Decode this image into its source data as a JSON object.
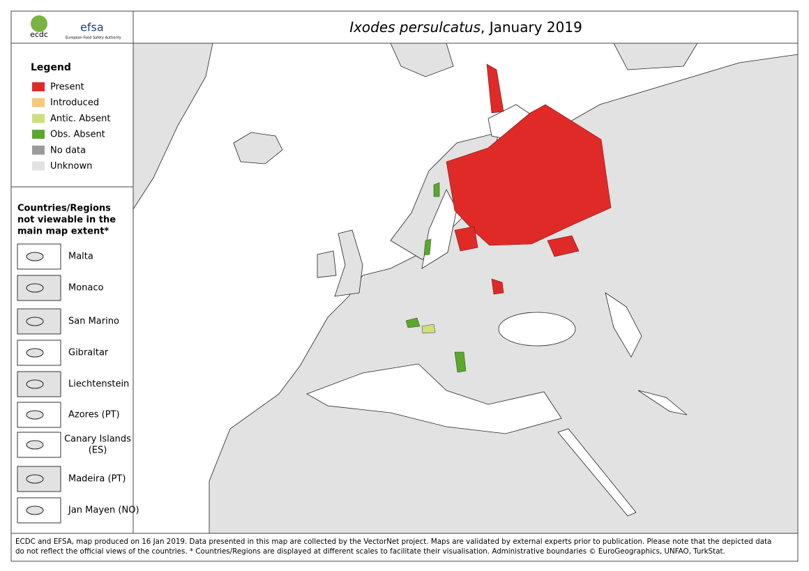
{
  "header": {
    "ecdc": "ecdc",
    "efsa": "efsa",
    "efsa_sub": "European Food Safety Authority",
    "title_species": "Ixodes persulcatus",
    "title_rest": ", January 2019"
  },
  "legend": {
    "title": "Legend",
    "items": [
      {
        "label": "Present",
        "color": "#e02a28"
      },
      {
        "label": "Introduced",
        "color": "#f7c97a"
      },
      {
        "label": "Antic. Absent",
        "color": "#cfe07a"
      },
      {
        "label": "Obs. Absent",
        "color": "#5aa92b"
      },
      {
        "label": "No data",
        "color": "#9b9b9b"
      },
      {
        "label": "Unknown",
        "color": "#e2e2e2"
      }
    ]
  },
  "regions": {
    "title": [
      "Countries/Regions",
      "not viewable in the",
      "main map extent*"
    ],
    "items": [
      [
        "Malta"
      ],
      [
        "Monaco"
      ],
      [
        "San Marino"
      ],
      [
        "Gibraltar"
      ],
      [
        "Liechtenstein"
      ],
      [
        "Azores (PT)"
      ],
      [
        "Canary Islands",
        "(ES)"
      ],
      [
        "Madeira (PT)"
      ],
      [
        "Jan Mayen (NO)"
      ]
    ]
  },
  "footer": [
    "ECDC and EFSA, map produced on 16 Jan 2019. Data presented in this map are collected by the VectorNet project. Maps are validated by external experts prior to publication. Please note that the depicted data",
    "do not reflect the official views of the countries. * Countries/Regions are displayed at different scales to facilitate their visualisation. Administrative boundaries © EuroGeographics, UNFAO, TurkStat."
  ]
}
